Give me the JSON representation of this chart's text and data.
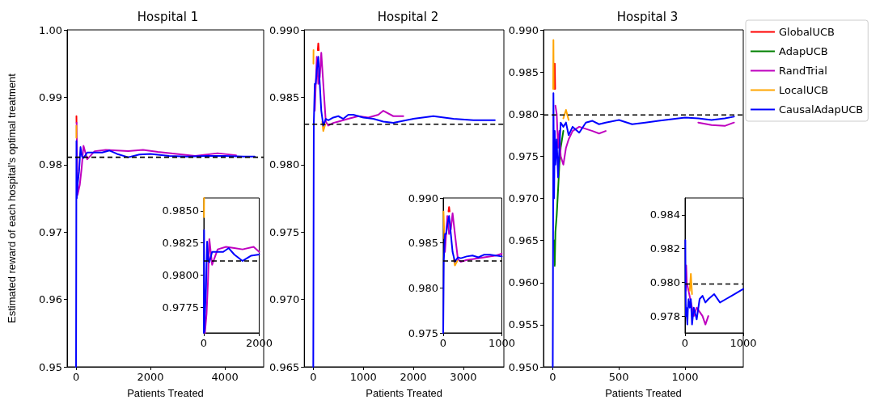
{
  "chart_data": [
    {
      "type": "line",
      "title": "Hospital 1",
      "xlabel": "Patients Treated",
      "ylabel": "Estimated reward of each hospital's optimal treatment",
      "xlim": [
        -240,
        5040
      ],
      "xticks": [
        0,
        2000,
        4000
      ],
      "ylim": [
        0.95,
        1.0
      ],
      "yticks": [
        {
          "value": 0.95,
          "label": "0.95"
        },
        {
          "value": 0.96,
          "label": "0.96"
        },
        {
          "value": 0.97,
          "label": "0.97"
        },
        {
          "value": 0.98,
          "label": "0.98"
        },
        {
          "value": 0.99,
          "label": "0.99"
        },
        {
          "value": 1.0,
          "label": "1.00"
        }
      ],
      "grid": false,
      "legend": false,
      "series": [
        {
          "color": "#ff0000",
          "x": [
            10,
            12
          ],
          "values": [
            0.9872,
            0.9862
          ]
        },
        {
          "color": "#bf00bf",
          "x": [
            15,
            40,
            100,
            150,
            200,
            300,
            500,
            800,
            1100,
            1400,
            1800,
            2200,
            2700,
            3200,
            3800,
            4300
          ],
          "values": [
            0.9862,
            0.9755,
            0.977,
            0.9795,
            0.9828,
            0.9808,
            0.982,
            0.9822,
            0.9821,
            0.982,
            0.9822,
            0.9819,
            0.9816,
            0.9813,
            0.9817,
            0.9814
          ]
        },
        {
          "color": "#ffa500",
          "x": [
            8,
            10
          ],
          "values": [
            0.984,
            0.9858
          ]
        },
        {
          "color": "#0000ff",
          "x": [
            0,
            10,
            20,
            40,
            80,
            120,
            160,
            200,
            300,
            500,
            700,
            900,
            1100,
            1400,
            1700,
            2000,
            2500,
            3000,
            3500,
            4000,
            4500,
            4800
          ],
          "values": [
            0.95,
            0.9835,
            0.975,
            0.977,
            0.979,
            0.9826,
            0.9812,
            0.981,
            0.9818,
            0.9818,
            0.9818,
            0.9821,
            0.9816,
            0.9811,
            0.9815,
            0.9816,
            0.9813,
            0.9812,
            0.9813,
            0.9813,
            0.9812,
            0.9812
          ]
        }
      ],
      "ref_lines": [
        {
          "axis": "y",
          "value": 0.9811,
          "color": "#000000",
          "line_style": "dashed"
        }
      ]
    },
    {
      "type": "line",
      "title": "Hospital 2",
      "xlabel": "Patients Treated",
      "xlim": [
        -180,
        3810
      ],
      "xticks": [
        0,
        1000,
        2000,
        3000
      ],
      "ylim": [
        0.965,
        0.99
      ],
      "yticks": [
        {
          "value": 0.965,
          "label": "0.965"
        },
        {
          "value": 0.97,
          "label": "0.970"
        },
        {
          "value": 0.975,
          "label": "0.975"
        },
        {
          "value": 0.98,
          "label": "0.980"
        },
        {
          "value": 0.985,
          "label": "0.985"
        },
        {
          "value": 0.99,
          "label": "0.990"
        }
      ],
      "grid": false,
      "legend": false,
      "series": [
        {
          "color": "#ff0000",
          "x": [
            90,
            100,
            110
          ],
          "values": [
            0.9885,
            0.989,
            0.9885
          ]
        },
        {
          "color": "#bf00bf",
          "x": [
            30,
            70,
            100,
            130,
            160,
            200,
            250,
            300,
            400,
            500,
            700,
            900,
            1100,
            1300,
            1400,
            1600,
            1800
          ],
          "values": [
            0.984,
            0.988,
            0.986,
            0.9865,
            0.9883,
            0.986,
            0.9832,
            0.9829,
            0.9831,
            0.9832,
            0.9834,
            0.9836,
            0.9835,
            0.9837,
            0.984,
            0.9836,
            0.9836
          ]
        },
        {
          "color": "#ffa500",
          "x": [
            3,
            5,
            100,
            180,
            200,
            240
          ],
          "values": [
            0.9875,
            0.9885,
            null,
            0.9832,
            0.9825,
            0.983
          ]
        },
        {
          "color": "#0000ff",
          "x": [
            0,
            10,
            30,
            50,
            70,
            100,
            130,
            160,
            200,
            250,
            300,
            400,
            500,
            600,
            700,
            800,
            1000,
            1200,
            1400,
            1600,
            2000,
            2400,
            2800,
            3200,
            3630
          ],
          "values": [
            0.965,
            0.983,
            0.986,
            0.986,
            0.987,
            0.988,
            0.986,
            0.984,
            0.9829,
            0.9834,
            0.9833,
            0.9835,
            0.9836,
            0.9834,
            0.9837,
            0.9837,
            0.9835,
            0.9834,
            0.9832,
            0.9831,
            0.9834,
            0.9836,
            0.9834,
            0.9833,
            0.9833
          ]
        }
      ],
      "ref_lines": [
        {
          "axis": "y",
          "value": 0.983,
          "color": "#000000",
          "line_style": "dashed"
        }
      ]
    },
    {
      "type": "line",
      "title": "Hospital 3",
      "xlabel": "Patients Treated",
      "xlim": [
        -70,
        1440
      ],
      "xticks": [
        0,
        500,
        1000
      ],
      "ylim": [
        0.95,
        0.99
      ],
      "yticks": [
        {
          "value": 0.95,
          "label": "0.950"
        },
        0.955,
        {
          "value": 0.96,
          "label": "0.960"
        },
        0.965,
        {
          "value": 0.97,
          "label": "0.970"
        },
        0.975,
        {
          "value": 0.98,
          "label": "0.980"
        },
        0.985,
        {
          "value": 0.99,
          "label": "0.990"
        }
      ],
      "grid": false,
      "legend": "top right",
      "series": [
        {
          "name": "GlobalUCB",
          "color": "#ff0000",
          "x": [
            12,
            15,
            18
          ],
          "values": [
            0.983,
            0.986,
            0.983
          ]
        },
        {
          "name": "AdapUCB",
          "color": "#008000",
          "x": [
            10,
            15,
            20,
            30,
            40,
            50,
            60,
            80
          ],
          "values": [
            0.965,
            0.962,
            0.966,
            0.968,
            0.971,
            0.974,
            0.976,
            0.978
          ]
        },
        {
          "name": "RandTrial",
          "color": "#bf00bf",
          "x": [
            20,
            30,
            40,
            50,
            60,
            80,
            100,
            120,
            150,
            200,
            300,
            350,
            400,
            450,
            1100,
            1200,
            1300,
            1370
          ],
          "values": [
            0.981,
            0.98,
            0.976,
            0.978,
            0.975,
            0.974,
            0.976,
            0.977,
            0.978,
            0.9785,
            0.978,
            0.9777,
            0.978,
            null,
            0.979,
            0.9787,
            0.9786,
            0.979
          ]
        },
        {
          "name": "LocalUCB",
          "color": "#ffa500",
          "x": [
            3,
            5,
            7,
            50,
            80,
            100,
            120
          ],
          "values": [
            0.983,
            0.9888,
            0.983,
            null,
            0.9795,
            0.9805,
            0.9793
          ]
        },
        {
          "name": "CausalAdapUCB",
          "color": "#0000ff",
          "x": [
            0,
            5,
            10,
            15,
            20,
            30,
            40,
            50,
            60,
            80,
            100,
            120,
            150,
            200,
            250,
            300,
            350,
            400,
            500,
            600,
            700,
            800,
            900,
            1000,
            1100,
            1200,
            1300,
            1370
          ],
          "values": [
            0.95,
            0.9825,
            0.97,
            0.978,
            0.974,
            0.977,
            0.9725,
            0.976,
            0.979,
            0.9785,
            0.979,
            0.9775,
            0.9785,
            0.9778,
            0.979,
            0.9792,
            0.9788,
            0.979,
            0.9793,
            0.9788,
            0.979,
            0.9792,
            0.9794,
            0.9796,
            0.9795,
            0.9793,
            0.9795,
            0.9797
          ]
        }
      ],
      "ref_lines": [
        {
          "axis": "y",
          "value": 0.9799,
          "color": "#000000",
          "line_style": "dashed"
        }
      ]
    },
    {
      "type": "line",
      "xlim": [
        0,
        2000
      ],
      "xticks": [
        0,
        2000
      ],
      "ylim": [
        0.9755,
        0.986
      ],
      "yticks": [
        0.9775,
        {
          "value": 0.98,
          "label": "0.9800"
        },
        0.9825,
        {
          "value": 0.985,
          "label": "0.9850"
        }
      ],
      "grid": false,
      "legend": false,
      "series": [
        {
          "color": "#bf00bf",
          "x": [
            15,
            40,
            100,
            150,
            200,
            300,
            500,
            800,
            1100,
            1400,
            1800,
            2000
          ],
          "values": [
            0.9762,
            0.9755,
            0.977,
            0.9795,
            0.9828,
            0.9808,
            0.982,
            0.9822,
            0.9821,
            0.982,
            0.9822,
            0.9818
          ]
        },
        {
          "color": "#ffa500",
          "x": [
            5,
            10
          ],
          "values": [
            0.9845,
            0.986
          ]
        },
        {
          "color": "#0000ff",
          "x": [
            0,
            10,
            20,
            40,
            80,
            120,
            160,
            200,
            300,
            500,
            700,
            900,
            1100,
            1400,
            1700,
            2000
          ],
          "values": [
            0.9755,
            0.9835,
            0.9756,
            0.977,
            0.979,
            0.9826,
            0.9812,
            0.981,
            0.9818,
            0.9818,
            0.9818,
            0.9821,
            0.9816,
            0.9811,
            0.9815,
            0.9816
          ]
        }
      ],
      "ref_lines": [
        {
          "axis": "y",
          "value": 0.9811,
          "color": "#000000",
          "line_style": "dashed"
        }
      ]
    },
    {
      "type": "line",
      "xlim": [
        0,
        1000
      ],
      "xticks": [
        0,
        1000
      ],
      "ylim": [
        0.975,
        0.99
      ],
      "yticks": [
        0.975,
        {
          "value": 0.98,
          "label": "0.980"
        },
        0.985,
        {
          "value": 0.99,
          "label": "0.990"
        }
      ],
      "grid": false,
      "legend": false,
      "series": [
        {
          "color": "#ff0000",
          "x": [
            90,
            100,
            110
          ],
          "values": [
            0.9885,
            0.989,
            0.9885
          ]
        },
        {
          "color": "#bf00bf",
          "x": [
            30,
            70,
            100,
            130,
            160,
            200,
            250,
            300,
            400,
            500,
            700,
            900,
            1000
          ],
          "values": [
            0.984,
            0.988,
            0.986,
            0.9865,
            0.9883,
            0.986,
            0.9832,
            0.9829,
            0.9831,
            0.9832,
            0.9834,
            0.9836,
            0.9838
          ]
        },
        {
          "color": "#ffa500",
          "x": [
            5,
            20,
            100,
            180,
            200,
            240
          ],
          "values": [
            0.9885,
            0.9855,
            null,
            0.9832,
            0.9825,
            0.983
          ]
        },
        {
          "color": "#0000ff",
          "x": [
            0,
            10,
            30,
            50,
            70,
            100,
            130,
            160,
            200,
            250,
            300,
            400,
            500,
            600,
            700,
            800,
            1000
          ],
          "values": [
            0.975,
            0.983,
            0.986,
            0.986,
            0.987,
            0.988,
            0.986,
            0.984,
            0.9829,
            0.9834,
            0.9833,
            0.9835,
            0.9836,
            0.9834,
            0.9837,
            0.9837,
            0.9835
          ]
        }
      ],
      "ref_lines": [
        {
          "axis": "y",
          "value": 0.983,
          "color": "#000000",
          "line_style": "dashed"
        }
      ]
    },
    {
      "type": "line",
      "xlim": [
        0,
        1000
      ],
      "xticks": [
        0,
        1000
      ],
      "ylim": [
        0.977,
        0.985
      ],
      "yticks": [
        0.978,
        {
          "value": 0.98,
          "label": "0.980"
        },
        0.982,
        0.984
      ],
      "grid": false,
      "legend": false,
      "series": [
        {
          "color": "#bf00bf",
          "x": [
            15,
            20,
            30,
            150,
            200,
            300,
            350,
            400
          ],
          "values": [
            0.9795,
            0.981,
            0.98,
            0.978,
            0.9785,
            0.978,
            0.9775,
            0.978
          ]
        },
        {
          "color": "#ffa500",
          "x": [
            80,
            100,
            120
          ],
          "values": [
            0.9795,
            0.9805,
            0.9793
          ]
        },
        {
          "color": "#0000ff",
          "x": [
            5,
            10,
            15,
            20,
            30,
            40,
            50,
            60,
            80,
            100,
            120,
            150,
            200,
            250,
            300,
            350,
            400,
            500,
            600,
            700,
            800,
            900,
            1000
          ],
          "values": [
            0.9825,
            0.9795,
            0.978,
            0.9785,
            0.978,
            0.9775,
            0.9785,
            0.979,
            0.9785,
            0.979,
            0.9775,
            0.9785,
            0.9778,
            0.979,
            0.9792,
            0.9788,
            0.979,
            0.9793,
            0.9788,
            0.979,
            0.9792,
            0.9794,
            0.9796
          ]
        }
      ],
      "ref_lines": [
        {
          "axis": "y",
          "value": 0.9799,
          "color": "#000000",
          "line_style": "dashed"
        }
      ]
    }
  ]
}
